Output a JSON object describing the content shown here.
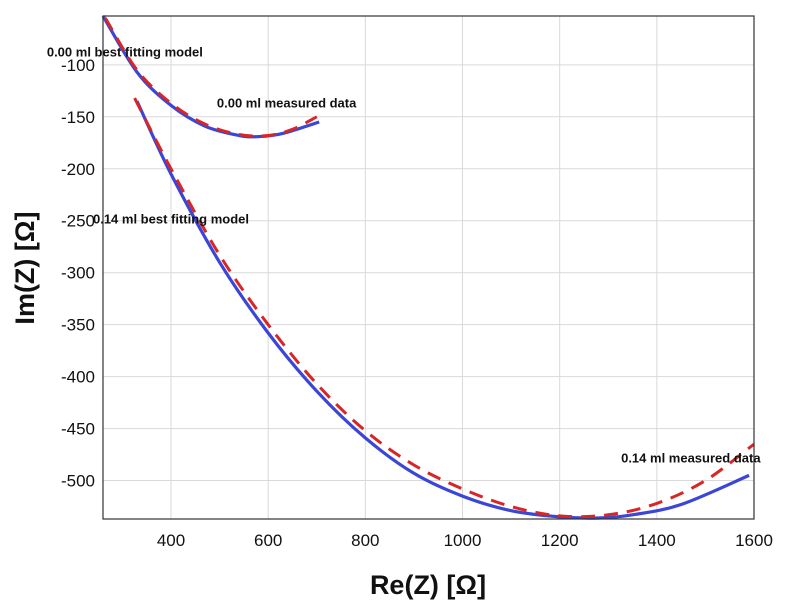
{
  "chart_data": {
    "type": "line",
    "title": "",
    "xlabel": "Re(Z) [Ω]",
    "ylabel": "Im(Z) [Ω]",
    "xlim": [
      260,
      1600
    ],
    "ylim": [
      -537,
      -53
    ],
    "grid": true,
    "x_ticks": [
      "400",
      "600",
      "800",
      "1000",
      "1200",
      "1400",
      "1600"
    ],
    "y_ticks": [
      "-100",
      "-150",
      "-200",
      "-250",
      "-300",
      "-350",
      "-400",
      "-450",
      "-500"
    ],
    "series": [
      {
        "name": "0.00 ml measured data",
        "style": "dashed",
        "color": "#d62728",
        "x": [
          265,
          330,
          400,
          470,
          540,
          600,
          650,
          700
        ],
        "y": [
          -55,
          -105,
          -137,
          -157,
          -167,
          -168,
          -162,
          -150
        ]
      },
      {
        "name": "0.00 ml best fitting model",
        "style": "solid",
        "color": "#3b46d6",
        "x": [
          260,
          330,
          400,
          470,
          540,
          580,
          630,
          705
        ],
        "y": [
          -53,
          -107,
          -139,
          -159,
          -168,
          -169,
          -166,
          -155
        ]
      },
      {
        "name": "0.14 ml measured data",
        "style": "dashed",
        "color": "#d62728",
        "x": [
          325,
          400,
          500,
          600,
          700,
          800,
          900,
          1000,
          1100,
          1200,
          1300,
          1400,
          1500,
          1600
        ],
        "y": [
          -132,
          -200,
          -283,
          -350,
          -407,
          -452,
          -485,
          -508,
          -525,
          -534,
          -533,
          -522,
          -500,
          -465
        ]
      },
      {
        "name": "0.14 ml best fitting model",
        "style": "solid",
        "color": "#3b46d6",
        "x": [
          330,
          400,
          500,
          600,
          700,
          800,
          900,
          1000,
          1100,
          1200,
          1280,
          1350,
          1450,
          1590
        ],
        "y": [
          -135,
          -205,
          -290,
          -358,
          -414,
          -459,
          -493,
          -515,
          -529,
          -535,
          -536,
          -533,
          -523,
          -495
        ]
      }
    ],
    "annotations": [
      {
        "text": "0.00 ml best fitting model",
        "x": 305,
        "y": -88
      },
      {
        "text": "0.00 ml measured data",
        "x": 638,
        "y": -137
      },
      {
        "text": "0.14 ml best fitting model",
        "x": 400,
        "y": -249
      },
      {
        "text": "0.14 ml measured data",
        "x": 1470,
        "y": -479
      }
    ]
  }
}
